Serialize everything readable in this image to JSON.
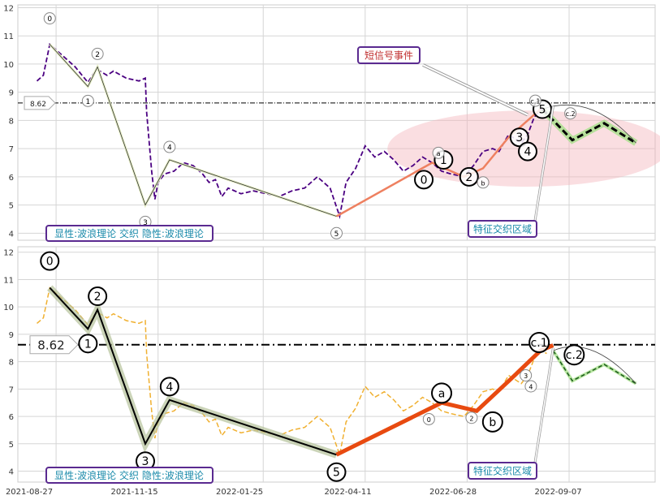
{
  "chart_data": [
    {
      "type": "line",
      "panel": "top",
      "ylim": [
        3.75,
        12.1
      ],
      "yticks": [
        4,
        5,
        6,
        7,
        8,
        9,
        10,
        11,
        12
      ],
      "hline": {
        "value": 8.62,
        "label": "8.62"
      },
      "price_series": {
        "color": "#4b0082",
        "points": [
          [
            0.03,
            9.4
          ],
          [
            0.04,
            9.6
          ],
          [
            0.05,
            10.7
          ],
          [
            0.07,
            10.3
          ],
          [
            0.09,
            9.9
          ],
          [
            0.11,
            9.35
          ],
          [
            0.12,
            9.7
          ],
          [
            0.125,
            9.8
          ],
          [
            0.14,
            9.6
          ],
          [
            0.15,
            9.75
          ],
          [
            0.17,
            9.5
          ],
          [
            0.19,
            9.4
          ],
          [
            0.2,
            9.5
          ],
          [
            0.202,
            8.3
          ],
          [
            0.21,
            6.2
          ],
          [
            0.215,
            5.2
          ],
          [
            0.22,
            5.8
          ],
          [
            0.23,
            6.1
          ],
          [
            0.245,
            6.2
          ],
          [
            0.26,
            6.5
          ],
          [
            0.275,
            6.4
          ],
          [
            0.29,
            6.1
          ],
          [
            0.3,
            5.8
          ],
          [
            0.31,
            5.9
          ],
          [
            0.32,
            5.3
          ],
          [
            0.33,
            5.6
          ],
          [
            0.35,
            5.4
          ],
          [
            0.37,
            5.5
          ],
          [
            0.39,
            5.4
          ],
          [
            0.41,
            5.3
          ],
          [
            0.43,
            5.5
          ],
          [
            0.45,
            5.6
          ],
          [
            0.47,
            6.0
          ],
          [
            0.49,
            5.6
          ],
          [
            0.505,
            4.6
          ],
          [
            0.515,
            5.8
          ],
          [
            0.53,
            6.3
          ],
          [
            0.545,
            7.1
          ],
          [
            0.56,
            6.7
          ],
          [
            0.575,
            6.9
          ],
          [
            0.59,
            6.6
          ],
          [
            0.605,
            6.2
          ],
          [
            0.62,
            6.4
          ],
          [
            0.635,
            6.7
          ],
          [
            0.65,
            6.5
          ],
          [
            0.665,
            6.2
          ],
          [
            0.68,
            6.1
          ],
          [
            0.7,
            6.0
          ],
          [
            0.715,
            6.4
          ],
          [
            0.73,
            6.9
          ],
          [
            0.745,
            7.0
          ],
          [
            0.755,
            6.9
          ],
          [
            0.77,
            7.5
          ],
          [
            0.79,
            7.2
          ],
          [
            0.8,
            7.5
          ],
          [
            0.81,
            8.1
          ],
          [
            0.82,
            8.4
          ],
          [
            0.83,
            8.3
          ]
        ]
      },
      "wave_points": [
        {
          "label": "0",
          "x": 0.05,
          "y": 10.7
        },
        {
          "label": "1",
          "x": 0.11,
          "y": 9.2
        },
        {
          "label": "2",
          "x": 0.125,
          "y": 9.9
        },
        {
          "label": "3",
          "x": 0.2,
          "y": 5.0
        },
        {
          "label": "4",
          "x": 0.238,
          "y": 6.6
        },
        {
          "label": "5",
          "x": 0.5,
          "y": 4.6
        }
      ],
      "orange_series": [
        [
          0.5,
          4.6
        ],
        [
          0.65,
          6.5
        ],
        [
          0.7,
          6.0
        ],
        [
          0.73,
          6.3
        ],
        [
          0.77,
          7.4
        ],
        [
          0.82,
          8.4
        ]
      ],
      "small_wave_points": [
        {
          "label": "0",
          "x": 0.637,
          "y": 5.9,
          "big": true
        },
        {
          "label": "1",
          "x": 0.668,
          "y": 6.6,
          "big": true
        },
        {
          "label": "a",
          "x": 0.66,
          "y": 6.85,
          "big": false
        },
        {
          "label": "2",
          "x": 0.708,
          "y": 6.0,
          "big": true
        },
        {
          "label": "b",
          "x": 0.73,
          "y": 5.8,
          "big": false
        },
        {
          "label": "3",
          "x": 0.787,
          "y": 7.4,
          "big": true
        },
        {
          "label": "4",
          "x": 0.8,
          "y": 6.9,
          "big": true
        },
        {
          "label": "5",
          "x": 0.823,
          "y": 8.4,
          "big": true
        },
        {
          "label": "c.1",
          "x": 0.812,
          "y": 8.7,
          "big": false
        },
        {
          "label": "c.2",
          "x": 0.867,
          "y": 8.25,
          "big": false
        }
      ],
      "forecast_series": [
        [
          0.823,
          8.4
        ],
        [
          0.87,
          7.3
        ],
        [
          0.92,
          7.9
        ],
        [
          0.97,
          7.2
        ]
      ],
      "highlight_ellipse": {
        "cx": 0.8,
        "cy": 7.0,
        "rx": 0.22,
        "ry": 1.35
      },
      "annotations": {
        "event_box": "短信号事件",
        "zone_box": "特征交织区域",
        "legend": "显性:波浪理论 交织 隐性:波浪理论"
      }
    },
    {
      "type": "line",
      "panel": "bottom",
      "ylim": [
        3.6,
        12.2
      ],
      "yticks": [
        4,
        5,
        6,
        7,
        8,
        9,
        10,
        11,
        12
      ],
      "hline": {
        "value": 8.62,
        "label": "8.62"
      },
      "xticks": [
        "2021-08-27",
        "2021-11-15",
        "2022-01-25",
        "2022-04-11",
        "2022-06-28",
        "2022-09-07"
      ],
      "price_series": {
        "color": "#f0b030",
        "points": [
          [
            0.03,
            9.4
          ],
          [
            0.04,
            9.6
          ],
          [
            0.05,
            10.7
          ],
          [
            0.07,
            10.3
          ],
          [
            0.09,
            9.9
          ],
          [
            0.11,
            9.35
          ],
          [
            0.12,
            9.7
          ],
          [
            0.125,
            9.8
          ],
          [
            0.14,
            9.6
          ],
          [
            0.15,
            9.75
          ],
          [
            0.17,
            9.5
          ],
          [
            0.19,
            9.4
          ],
          [
            0.2,
            9.5
          ],
          [
            0.202,
            8.3
          ],
          [
            0.21,
            6.2
          ],
          [
            0.215,
            5.2
          ],
          [
            0.22,
            5.8
          ],
          [
            0.23,
            6.1
          ],
          [
            0.245,
            6.2
          ],
          [
            0.26,
            6.5
          ],
          [
            0.275,
            6.4
          ],
          [
            0.29,
            6.1
          ],
          [
            0.3,
            5.8
          ],
          [
            0.31,
            5.9
          ],
          [
            0.32,
            5.3
          ],
          [
            0.33,
            5.6
          ],
          [
            0.35,
            5.4
          ],
          [
            0.37,
            5.5
          ],
          [
            0.39,
            5.4
          ],
          [
            0.41,
            5.3
          ],
          [
            0.43,
            5.5
          ],
          [
            0.45,
            5.6
          ],
          [
            0.47,
            6.0
          ],
          [
            0.49,
            5.6
          ],
          [
            0.505,
            4.6
          ],
          [
            0.515,
            5.8
          ],
          [
            0.53,
            6.3
          ],
          [
            0.545,
            7.1
          ],
          [
            0.56,
            6.7
          ],
          [
            0.575,
            6.9
          ],
          [
            0.59,
            6.6
          ],
          [
            0.605,
            6.2
          ],
          [
            0.62,
            6.4
          ],
          [
            0.635,
            6.7
          ],
          [
            0.65,
            6.5
          ],
          [
            0.665,
            6.2
          ],
          [
            0.68,
            6.1
          ],
          [
            0.7,
            6.0
          ],
          [
            0.715,
            6.4
          ],
          [
            0.73,
            6.9
          ],
          [
            0.745,
            7.0
          ],
          [
            0.755,
            6.9
          ],
          [
            0.77,
            7.5
          ],
          [
            0.79,
            7.2
          ],
          [
            0.8,
            7.5
          ],
          [
            0.81,
            8.1
          ],
          [
            0.82,
            8.4
          ],
          [
            0.83,
            8.3
          ]
        ]
      },
      "wave_points": [
        {
          "label": "0",
          "x": 0.05,
          "y": 10.7
        },
        {
          "label": "1",
          "x": 0.11,
          "y": 9.2
        },
        {
          "label": "2",
          "x": 0.125,
          "y": 9.9
        },
        {
          "label": "3",
          "x": 0.2,
          "y": 5.0
        },
        {
          "label": "4",
          "x": 0.238,
          "y": 6.6
        },
        {
          "label": "5",
          "x": 0.5,
          "y": 4.6
        }
      ],
      "orange_series": [
        [
          0.5,
          4.6
        ],
        [
          0.665,
          6.5
        ],
        [
          0.72,
          6.2
        ],
        [
          0.775,
          7.4
        ],
        [
          0.82,
          8.4
        ],
        [
          0.84,
          8.6
        ]
      ],
      "small_wave_points": [
        {
          "label": "a",
          "x": 0.665,
          "y": 6.85,
          "big": true
        },
        {
          "label": "0",
          "x": 0.645,
          "y": 5.9,
          "big": false
        },
        {
          "label": "2",
          "x": 0.712,
          "y": 5.95,
          "big": false
        },
        {
          "label": "b",
          "x": 0.745,
          "y": 5.8,
          "big": true
        },
        {
          "label": "3",
          "x": 0.797,
          "y": 7.5,
          "big": false
        },
        {
          "label": "4",
          "x": 0.805,
          "y": 7.1,
          "big": false
        },
        {
          "label": "c.1",
          "x": 0.818,
          "y": 8.7,
          "big": true
        },
        {
          "label": "c.2",
          "x": 0.873,
          "y": 8.25,
          "big": true
        }
      ],
      "forecast_series": [
        [
          0.84,
          8.4
        ],
        [
          0.87,
          7.3
        ],
        [
          0.92,
          7.9
        ],
        [
          0.97,
          7.2
        ]
      ],
      "annotations": {
        "zone_box": "特征交织区域",
        "legend": "显性:波浪理论 交织 隐性:波浪理论"
      }
    }
  ]
}
